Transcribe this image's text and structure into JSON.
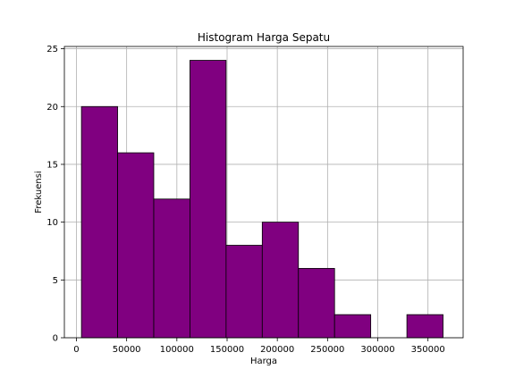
{
  "chart_data": {
    "type": "bar",
    "subtype": "histogram",
    "title": "Histogram Harga Sepatu",
    "xlabel": "Harga",
    "ylabel": "Frekuensi",
    "xlim": [
      -12000,
      385000
    ],
    "ylim": [
      0,
      25.2
    ],
    "bar_color": "#800080",
    "edge_color": "#000000",
    "grid": true,
    "bins": [
      {
        "start": 5000,
        "end": 41000,
        "count": 20
      },
      {
        "start": 41000,
        "end": 77000,
        "count": 16
      },
      {
        "start": 77000,
        "end": 113000,
        "count": 12
      },
      {
        "start": 113000,
        "end": 149000,
        "count": 24
      },
      {
        "start": 149000,
        "end": 185000,
        "count": 8
      },
      {
        "start": 185000,
        "end": 221000,
        "count": 10
      },
      {
        "start": 221000,
        "end": 257000,
        "count": 6
      },
      {
        "start": 257000,
        "end": 293000,
        "count": 2
      },
      {
        "start": 293000,
        "end": 329000,
        "count": 0
      },
      {
        "start": 329000,
        "end": 365000,
        "count": 2
      }
    ],
    "x_ticks": [
      0,
      50000,
      100000,
      150000,
      200000,
      250000,
      300000,
      350000
    ],
    "y_ticks": [
      0,
      5,
      10,
      15,
      20,
      25
    ]
  }
}
